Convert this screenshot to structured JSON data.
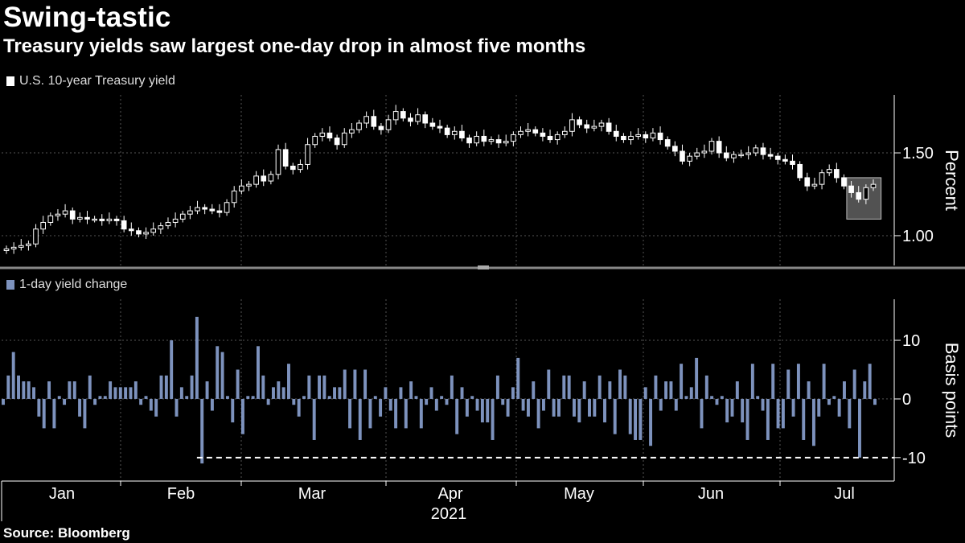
{
  "header": {
    "title": "Swing-tastic",
    "subtitle": "Treasury yields saw largest one-day drop in almost five months"
  },
  "source": "Source: Bloomberg",
  "colors": {
    "background": "#000000",
    "candle": "#ffffff",
    "bar": "#7d92bd",
    "grid": "#555555",
    "highlight": "#6e6e6e"
  },
  "chart_data": [
    {
      "type": "candlestick",
      "title": "U.S. 10-year Treasury yield",
      "legend_label": "U.S. 10-year Treasury yield",
      "ylabel": "Percent",
      "ylim": [
        0.82,
        1.85
      ],
      "yticks": [
        1.0,
        1.5
      ],
      "ytick_labels": [
        "1.00",
        "1.50"
      ],
      "xticks": [
        "Jan",
        "Feb",
        "Mar",
        "Apr",
        "May",
        "Jun",
        "Jul"
      ],
      "xlabel": "2021",
      "highlight": "last 4 sessions (boxed)",
      "close_values": [
        0.92,
        0.93,
        0.94,
        0.95,
        1.04,
        1.08,
        1.12,
        1.13,
        1.15,
        1.1,
        1.11,
        1.1,
        1.1,
        1.09,
        1.1,
        1.09,
        1.04,
        1.03,
        1.01,
        1.02,
        1.04,
        1.06,
        1.08,
        1.1,
        1.13,
        1.15,
        1.17,
        1.16,
        1.15,
        1.14,
        1.2,
        1.27,
        1.3,
        1.31,
        1.36,
        1.33,
        1.37,
        1.52,
        1.42,
        1.4,
        1.43,
        1.55,
        1.6,
        1.62,
        1.59,
        1.55,
        1.62,
        1.64,
        1.68,
        1.72,
        1.66,
        1.64,
        1.7,
        1.75,
        1.71,
        1.69,
        1.73,
        1.68,
        1.66,
        1.65,
        1.61,
        1.63,
        1.59,
        1.56,
        1.6,
        1.57,
        1.58,
        1.56,
        1.57,
        1.61,
        1.63,
        1.64,
        1.62,
        1.6,
        1.58,
        1.61,
        1.63,
        1.7,
        1.67,
        1.65,
        1.66,
        1.68,
        1.63,
        1.6,
        1.58,
        1.6,
        1.61,
        1.59,
        1.62,
        1.58,
        1.54,
        1.51,
        1.45,
        1.48,
        1.5,
        1.51,
        1.57,
        1.5,
        1.47,
        1.49,
        1.49,
        1.5,
        1.53,
        1.49,
        1.48,
        1.46,
        1.45,
        1.43,
        1.35,
        1.3,
        1.31,
        1.38,
        1.4,
        1.35,
        1.3,
        1.26,
        1.22,
        1.29,
        1.31
      ],
      "box_label": ""
    },
    {
      "type": "bar",
      "title": "1-day yield change",
      "legend_label": "1-day yield change",
      "ylabel": "Basis points",
      "ylim": [
        -14,
        17
      ],
      "yticks": [
        10,
        0,
        -10
      ],
      "ytick_labels": [
        "10",
        "0",
        "-10"
      ],
      "reference_line": {
        "value": -10,
        "style": "dashed",
        "start_index": 38
      },
      "values": [
        -1,
        4,
        8,
        4,
        3,
        3,
        2,
        -3,
        -5,
        3,
        -5,
        0.5,
        -1,
        3,
        3,
        -3,
        -5,
        4,
        -1,
        0.5,
        0.5,
        3,
        2,
        2,
        2,
        2,
        3,
        -1,
        0.5,
        -2,
        -3,
        4,
        4,
        10,
        -3,
        2,
        0.5,
        4,
        14,
        -11,
        3,
        -2,
        9,
        8,
        0.5,
        -4,
        5,
        -6,
        0.5,
        0.5,
        9,
        4,
        -1,
        2,
        3,
        2,
        6,
        -1,
        -3,
        0.5,
        4,
        -7,
        4,
        4,
        0.5,
        2,
        2,
        5,
        -5,
        5,
        -7,
        5,
        -5,
        0.5,
        -3,
        2,
        -2,
        -5,
        2,
        -5,
        3,
        0.5,
        -5,
        -1,
        2,
        -2,
        0.5,
        -1,
        4,
        -6,
        2,
        -3,
        0.5,
        -2,
        -4,
        -4,
        -7,
        4,
        -1,
        -3,
        2,
        7,
        -2,
        -3,
        3,
        -5,
        -2,
        5,
        -3,
        -3,
        4,
        4,
        -3,
        -4,
        3,
        -3,
        -3,
        4,
        -4,
        3,
        -6,
        5,
        4,
        -6,
        -7,
        -7,
        2,
        -8,
        4,
        -2,
        3,
        3,
        -2,
        6,
        0.5,
        2,
        7,
        -5,
        4,
        0.5,
        -1,
        0.5,
        -4,
        -3,
        3,
        -4,
        -7,
        6,
        0.5,
        -2,
        -7,
        6,
        -5,
        -5,
        5,
        -3,
        6,
        -7,
        3,
        -8,
        -3,
        6,
        -1,
        0.5,
        -3,
        3,
        -5,
        5,
        -10,
        3,
        6,
        -1
      ]
    }
  ]
}
